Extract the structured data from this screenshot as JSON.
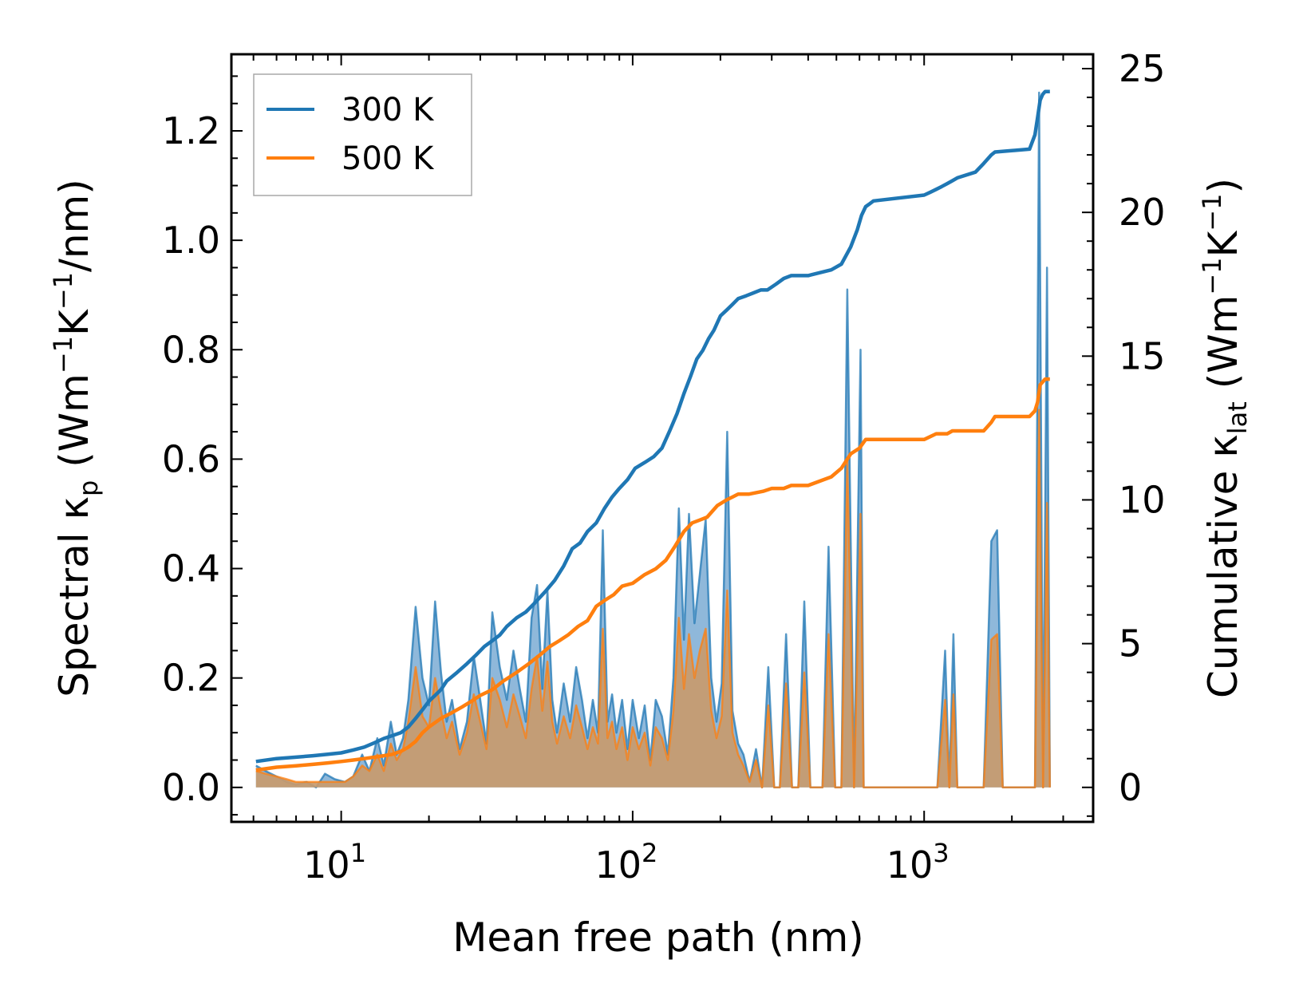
{
  "chart_data": {
    "type": "line",
    "title": "",
    "xlabel": "Mean free path (nm)",
    "xscale": "log",
    "xlim": [
      4.2,
      3800
    ],
    "x_ticks": [
      {
        "value": 10,
        "base": "10",
        "exp": "1"
      },
      {
        "value": 100,
        "base": "10",
        "exp": "2"
      },
      {
        "value": 1000,
        "base": "10",
        "exp": "3"
      }
    ],
    "y_left": {
      "label_prefix": "Spectral κ",
      "label_sub": "p",
      "label_units_open": " (Wm",
      "label_sup1": "−1",
      "label_mid": "K",
      "label_sup2": "−1",
      "label_units_close": "/nm)",
      "ylim": [
        -0.063,
        1.34
      ],
      "ticks": [
        "0.0",
        "0.2",
        "0.4",
        "0.6",
        "0.8",
        "1.0",
        "1.2"
      ]
    },
    "y_right": {
      "label_prefix": "Cumulative κ",
      "label_sub": "lat",
      "label_units_open": " (Wm",
      "label_sup1": "−1",
      "label_mid": "K",
      "label_sup2": "−1",
      "label_units_close": ")",
      "ylim": [
        -1.2,
        25.5
      ],
      "ticks": [
        "0",
        "5",
        "10",
        "15",
        "20",
        "25"
      ]
    },
    "legend": {
      "location": "upper left",
      "entries": [
        {
          "label": "300 K",
          "color": "#1f77b4"
        },
        {
          "label": "500 K",
          "color": "#ff7f0e"
        }
      ]
    },
    "series": [
      {
        "name": "300 K",
        "color": "#1f77b4",
        "spectral": {
          "x": [
            5.1,
            5.5,
            6.0,
            6.5,
            7.0,
            7.6,
            8.2,
            8.8,
            9.5,
            10.3,
            11.0,
            11.8,
            12.5,
            13.3,
            14.0,
            14.8,
            15.5,
            16.3,
            17.0,
            18.0,
            19.0,
            20.0,
            21.0,
            22.0,
            23.0,
            24.0,
            25.5,
            27.0,
            28.5,
            30.0,
            31.5,
            33.0,
            35.0,
            37.0,
            39.0,
            41.0,
            43.0,
            45.0,
            47.0,
            49.0,
            51.0,
            53.0,
            55.0,
            58.0,
            61.0,
            64.0,
            67.0,
            70.0,
            73.0,
            76.0,
            79.0,
            82.0,
            85.0,
            88.0,
            92.0,
            96.0,
            100.0,
            105.0,
            110.0,
            115.0,
            120.0,
            126.0,
            132.0,
            138.0,
            144.0,
            150.0,
            156.0,
            163.0,
            170.0,
            178.0,
            186.0,
            194.0,
            202.0,
            211.0,
            220.0,
            230.0,
            240.0,
            252.0,
            265.0,
            278.0,
            292.0,
            306.0,
            320.0,
            336.0,
            352.0,
            370.0,
            388.0,
            407.0,
            427.0,
            448.0,
            470.0,
            495.0,
            520.0,
            545.0,
            575.0,
            605.0,
            620.0,
            640.0,
            655.0,
            675.0,
            700.0,
            800.0,
            1000.0,
            1110.0,
            1180.0,
            1220.0,
            1260.0,
            1300.0,
            1600.0,
            1700.0,
            1780.0,
            1860.0,
            2400.0,
            2480.0,
            2560.0,
            2640.0,
            2700.0
          ],
          "y": [
            0.04,
            0.03,
            0.02,
            0.01,
            0.005,
            0.01,
            0.0,
            0.025,
            0.015,
            0.01,
            0.02,
            0.06,
            0.03,
            0.09,
            0.04,
            0.12,
            0.06,
            0.09,
            0.16,
            0.33,
            0.2,
            0.15,
            0.34,
            0.21,
            0.12,
            0.16,
            0.07,
            0.12,
            0.24,
            0.16,
            0.08,
            0.32,
            0.22,
            0.16,
            0.25,
            0.18,
            0.12,
            0.31,
            0.37,
            0.18,
            0.36,
            0.16,
            0.1,
            0.19,
            0.12,
            0.22,
            0.16,
            0.09,
            0.16,
            0.1,
            0.47,
            0.12,
            0.17,
            0.1,
            0.16,
            0.07,
            0.16,
            0.09,
            0.15,
            0.05,
            0.16,
            0.13,
            0.06,
            0.2,
            0.51,
            0.27,
            0.5,
            0.3,
            0.39,
            0.49,
            0.2,
            0.12,
            0.19,
            0.65,
            0.14,
            0.08,
            0.06,
            0.01,
            0.07,
            0.0,
            0.22,
            0.0,
            0.0,
            0.28,
            0.0,
            0.0,
            0.34,
            0.0,
            0.0,
            0.0,
            0.44,
            0.0,
            0.0,
            0.91,
            0.0,
            0.8,
            0.0,
            0.0,
            0.0,
            0.0,
            0.0,
            0.0,
            0.0,
            0.0,
            0.25,
            0.0,
            0.28,
            0.0,
            0.0,
            0.45,
            0.47,
            0.0,
            0.0,
            1.27,
            0.0,
            0.95,
            0.0
          ]
        },
        "cumulative": {
          "x": [
            5.1,
            6.0,
            7.0,
            8.0,
            9.0,
            10.0,
            11.0,
            12.0,
            13.0,
            14.0,
            15.0,
            16.0,
            17.0,
            18.0,
            19.0,
            20.0,
            21.0,
            22.0,
            23.0,
            25.0,
            27.0,
            29.0,
            31.0,
            33.0,
            35.0,
            37.0,
            40.0,
            43.0,
            46.0,
            50.0,
            54.0,
            58.0,
            62.0,
            66.0,
            70.0,
            75.0,
            80.0,
            85.0,
            90.0,
            96.0,
            102.0,
            110.0,
            118.0,
            126.0,
            134.0,
            142.0,
            150.0,
            158.0,
            166.0,
            174.0,
            182.0,
            190.0,
            200.0,
            210.0,
            220.0,
            230.0,
            245.0,
            260.0,
            275.0,
            290.0,
            310.0,
            330.0,
            350.0,
            400.0,
            480.0,
            520.0,
            560.0,
            590.0,
            610.0,
            630.0,
            650.0,
            670.0,
            1000.0,
            1050.0,
            1100.0,
            1150.0,
            1200.0,
            1250.0,
            1300.0,
            1500.0,
            1600.0,
            1700.0,
            1750.0,
            2300.0,
            2400.0,
            2450.0,
            2500.0,
            2550.0,
            2600.0,
            2700.0
          ],
          "y": [
            0.9,
            1.0,
            1.05,
            1.1,
            1.15,
            1.2,
            1.3,
            1.4,
            1.55,
            1.7,
            1.8,
            1.9,
            2.1,
            2.4,
            2.7,
            3.0,
            3.2,
            3.4,
            3.7,
            4.0,
            4.3,
            4.6,
            4.9,
            5.1,
            5.3,
            5.6,
            5.9,
            6.1,
            6.4,
            6.8,
            7.2,
            7.7,
            8.3,
            8.5,
            8.9,
            9.2,
            9.7,
            10.1,
            10.4,
            10.7,
            11.1,
            11.3,
            11.5,
            11.8,
            12.4,
            13.0,
            13.7,
            14.3,
            14.9,
            15.2,
            15.6,
            15.9,
            16.4,
            16.6,
            16.8,
            17.0,
            17.1,
            17.2,
            17.3,
            17.3,
            17.5,
            17.7,
            17.8,
            17.8,
            18.0,
            18.2,
            18.8,
            19.4,
            19.9,
            20.2,
            20.3,
            20.4,
            20.6,
            20.7,
            20.8,
            20.9,
            21.0,
            21.1,
            21.2,
            21.4,
            21.7,
            22.0,
            22.1,
            22.2,
            22.7,
            23.3,
            23.9,
            24.1,
            24.2,
            24.2
          ]
        }
      },
      {
        "name": "500 K",
        "color": "#ff7f0e",
        "spectral": {
          "x": [
            5.1,
            5.5,
            6.0,
            6.5,
            7.0,
            7.6,
            8.2,
            8.8,
            9.5,
            10.3,
            11.0,
            11.8,
            12.5,
            13.3,
            14.0,
            14.8,
            15.5,
            16.3,
            17.0,
            18.0,
            19.0,
            20.0,
            21.0,
            22.0,
            23.0,
            24.0,
            25.5,
            27.0,
            28.5,
            30.0,
            31.5,
            33.0,
            35.0,
            37.0,
            39.0,
            41.0,
            43.0,
            45.0,
            47.0,
            49.0,
            51.0,
            53.0,
            55.0,
            58.0,
            61.0,
            64.0,
            67.0,
            70.0,
            73.0,
            76.0,
            79.0,
            82.0,
            85.0,
            88.0,
            92.0,
            96.0,
            100.0,
            105.0,
            110.0,
            115.0,
            120.0,
            126.0,
            132.0,
            138.0,
            144.0,
            150.0,
            156.0,
            163.0,
            170.0,
            178.0,
            186.0,
            194.0,
            202.0,
            211.0,
            220.0,
            230.0,
            240.0,
            252.0,
            265.0,
            278.0,
            292.0,
            306.0,
            320.0,
            336.0,
            352.0,
            370.0,
            388.0,
            407.0,
            427.0,
            448.0,
            470.0,
            495.0,
            520.0,
            545.0,
            575.0,
            605.0,
            620.0,
            640.0,
            655.0,
            675.0,
            700.0,
            800.0,
            1000.0,
            1110.0,
            1180.0,
            1220.0,
            1260.0,
            1300.0,
            1600.0,
            1700.0,
            1780.0,
            1860.0,
            2400.0,
            2480.0,
            2560.0,
            2640.0,
            2700.0
          ],
          "y": [
            0.03,
            0.025,
            0.02,
            0.015,
            0.01,
            0.01,
            0.01,
            0.01,
            0.01,
            0.01,
            0.02,
            0.04,
            0.03,
            0.06,
            0.03,
            0.08,
            0.05,
            0.07,
            0.12,
            0.22,
            0.13,
            0.11,
            0.2,
            0.14,
            0.09,
            0.12,
            0.06,
            0.1,
            0.17,
            0.12,
            0.07,
            0.2,
            0.16,
            0.11,
            0.17,
            0.13,
            0.09,
            0.18,
            0.24,
            0.14,
            0.23,
            0.12,
            0.08,
            0.13,
            0.09,
            0.15,
            0.11,
            0.07,
            0.11,
            0.08,
            0.29,
            0.09,
            0.12,
            0.07,
            0.11,
            0.05,
            0.11,
            0.07,
            0.1,
            0.04,
            0.11,
            0.09,
            0.05,
            0.14,
            0.31,
            0.18,
            0.28,
            0.2,
            0.25,
            0.29,
            0.14,
            0.09,
            0.13,
            0.36,
            0.1,
            0.06,
            0.04,
            0.01,
            0.05,
            0.0,
            0.15,
            0.0,
            0.0,
            0.19,
            0.0,
            0.0,
            0.21,
            0.0,
            0.0,
            0.0,
            0.28,
            0.0,
            0.0,
            0.6,
            0.0,
            0.5,
            0.0,
            0.0,
            0.0,
            0.0,
            0.0,
            0.0,
            0.0,
            0.0,
            0.16,
            0.0,
            0.17,
            0.0,
            0.0,
            0.27,
            0.28,
            0.0,
            0.0,
            0.69,
            0.0,
            0.52,
            0.0
          ]
        },
        "cumulative": {
          "x": [
            5.1,
            6.0,
            7.0,
            8.0,
            9.0,
            10.0,
            11.0,
            12.0,
            13.0,
            14.0,
            15.0,
            16.0,
            17.0,
            18.0,
            19.0,
            20.0,
            22.0,
            24.0,
            26.0,
            28.0,
            30.0,
            33.0,
            36.0,
            40.0,
            44.0,
            48.0,
            52.0,
            56.0,
            60.0,
            65.0,
            70.0,
            75.0,
            80.0,
            86.0,
            92.0,
            100.0,
            110.0,
            120.0,
            130.0,
            140.0,
            150.0,
            160.0,
            170.0,
            180.0,
            195.0,
            210.0,
            220.0,
            230.0,
            250.0,
            280.0,
            300.0,
            330.0,
            350.0,
            400.0,
            480.0,
            520.0,
            560.0,
            600.0,
            630.0,
            660.0,
            1000.0,
            1100.0,
            1200.0,
            1250.0,
            1300.0,
            1600.0,
            1700.0,
            1750.0,
            2300.0,
            2400.0,
            2450.0,
            2500.0,
            2600.0,
            2700.0
          ],
          "y": [
            0.6,
            0.7,
            0.75,
            0.8,
            0.85,
            0.9,
            0.95,
            1.0,
            1.05,
            1.1,
            1.15,
            1.25,
            1.4,
            1.6,
            1.9,
            2.1,
            2.4,
            2.6,
            2.8,
            3.0,
            3.2,
            3.4,
            3.7,
            4.0,
            4.3,
            4.6,
            4.9,
            5.1,
            5.3,
            5.6,
            5.8,
            6.3,
            6.5,
            6.7,
            7.0,
            7.1,
            7.4,
            7.6,
            7.9,
            8.4,
            8.9,
            9.2,
            9.3,
            9.4,
            9.8,
            10.0,
            10.1,
            10.2,
            10.2,
            10.3,
            10.4,
            10.4,
            10.5,
            10.5,
            10.8,
            11.1,
            11.6,
            11.8,
            12.1,
            12.1,
            12.1,
            12.3,
            12.3,
            12.4,
            12.4,
            12.4,
            12.7,
            12.9,
            12.9,
            13.1,
            13.4,
            14.0,
            14.2,
            14.2
          ]
        }
      }
    ]
  }
}
